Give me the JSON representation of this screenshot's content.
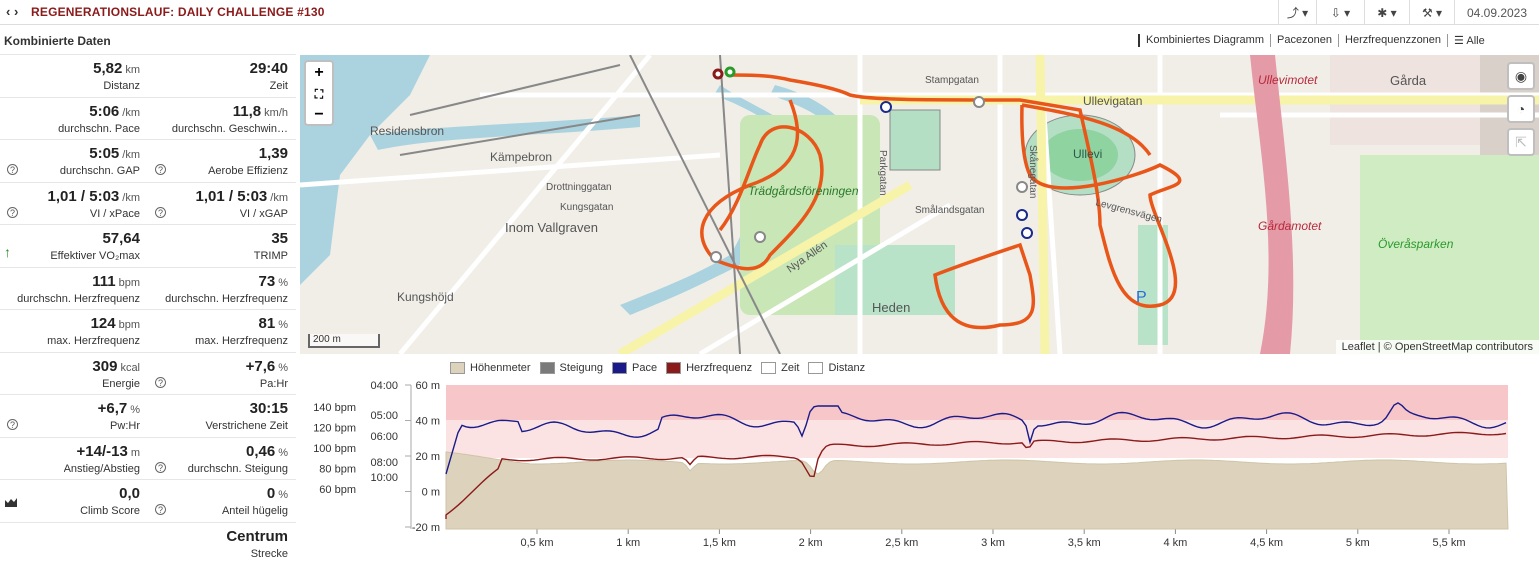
{
  "header": {
    "title": "REGENERATIONSLAUF: DAILY CHALLENGE #130",
    "date": "04.09.2023"
  },
  "left": {
    "heading": "Kombinierte Daten"
  },
  "tabs": [
    "Kombiniertes Diagramm",
    "Pacezonen",
    "Herzfrequenzzonen",
    "Alle"
  ],
  "stats": [
    [
      {
        "v": "5,82",
        "u": "km",
        "l": "Distanz"
      },
      {
        "v": "29:40",
        "u": "",
        "l": "Zeit"
      }
    ],
    [
      {
        "v": "5:06",
        "u": "/km",
        "l": "durchschn. Pace"
      },
      {
        "v": "11,8",
        "u": "km/h",
        "l": "durchschn. Geschwin…"
      }
    ],
    [
      {
        "v": "5:05",
        "u": "/km",
        "l": "durchschn. GAP",
        "i": true
      },
      {
        "v": "1,39",
        "u": "",
        "l": "Aerobe Effizienz",
        "i": true
      }
    ],
    [
      {
        "v": "1,01 / 5:03",
        "u": "/km",
        "l": "VI / xPace",
        "i": true
      },
      {
        "v": "1,01 / 5:03",
        "u": "/km",
        "l": "VI / xGAP",
        "i": true
      }
    ],
    [
      {
        "v": "57,64",
        "u": "",
        "l": "Effektiver VO₂max",
        "a": true
      },
      {
        "v": "35",
        "u": "",
        "l": "TRIMP"
      }
    ],
    [
      {
        "v": "111",
        "u": "bpm",
        "l": "durchschn. Herzfrequenz"
      },
      {
        "v": "73",
        "u": "%",
        "l": "durchschn. Herzfrequenz"
      }
    ],
    [
      {
        "v": "124",
        "u": "bpm",
        "l": "max. Herzfrequenz"
      },
      {
        "v": "81",
        "u": "%",
        "l": "max. Herzfrequenz"
      }
    ],
    [
      {
        "v": "309",
        "u": "kcal",
        "l": "Energie"
      },
      {
        "v": "+7,6",
        "u": "%",
        "l": "Pa:Hr",
        "i": true
      }
    ],
    [
      {
        "v": "+6,7",
        "u": "%",
        "l": "Pw:Hr",
        "i": true
      },
      {
        "v": "30:15",
        "u": "",
        "l": "Verstrichene Zeit"
      }
    ],
    [
      {
        "v": "+14/-13",
        "u": "m",
        "l": "Anstieg/Abstieg"
      },
      {
        "v": "0,46",
        "u": "%",
        "l": "durchschn. Steigung",
        "i": true
      }
    ],
    [
      {
        "v": "0,0",
        "u": "",
        "l": "Climb Score",
        "c": true
      },
      {
        "v": "0",
        "u": "%",
        "l": "Anteil hügelig",
        "i": true
      }
    ],
    [
      null,
      {
        "v": "Centrum",
        "u": "",
        "l": "Strecke"
      }
    ]
  ],
  "map": {
    "zoom_in": "+",
    "zoom_out": "−",
    "fullscreen": "⛶",
    "scale": "200 m",
    "attribution": "Leaflet | © OpenStreetMap contributors",
    "labels": [
      "Residensbron",
      "Kämpebron",
      "Trädgårdsföreningen",
      "Inom Vallgraven",
      "Kungshöjd",
      "Heden",
      "Ullevi",
      "Ullevigatan",
      "Överåsparken",
      "Gårda",
      "Ullevimotet",
      "Gårdamotet",
      "Smålandsgatan",
      "Nya Allén",
      "Parkgatan",
      "Skånegatan",
      "Levgrensvägen",
      "Stampgatan",
      "Kungsgatan",
      "Drottninggatan"
    ],
    "route_color": "#e8561a"
  },
  "chart": {
    "legend": [
      "Höhenmeter",
      "Steigung",
      "Pace",
      "Herzfrequenz",
      "Zeit",
      "Distanz"
    ],
    "legend_colors": [
      "#ddd3bd",
      "#7a7a7a",
      "#1a1a8a",
      "#8b1a1a",
      "#ffffff",
      "#ffffff"
    ],
    "hr_ticks": [
      "140 bpm",
      "120 bpm",
      "100 bpm",
      "80 bpm",
      "60 bpm"
    ],
    "pace_ticks": [
      "04:00",
      "05:00",
      "06:00",
      "08:00",
      "10:00"
    ],
    "elev_ticks": [
      "60 m",
      "40 m",
      "20 m",
      "0 m",
      "-20 m"
    ],
    "x_ticks": [
      "0,5 km",
      "1 km",
      "1,5 km",
      "2 km",
      "2,5 km",
      "3 km",
      "3,5 km",
      "4 km",
      "4,5 km",
      "5 km",
      "5,5 km"
    ]
  }
}
